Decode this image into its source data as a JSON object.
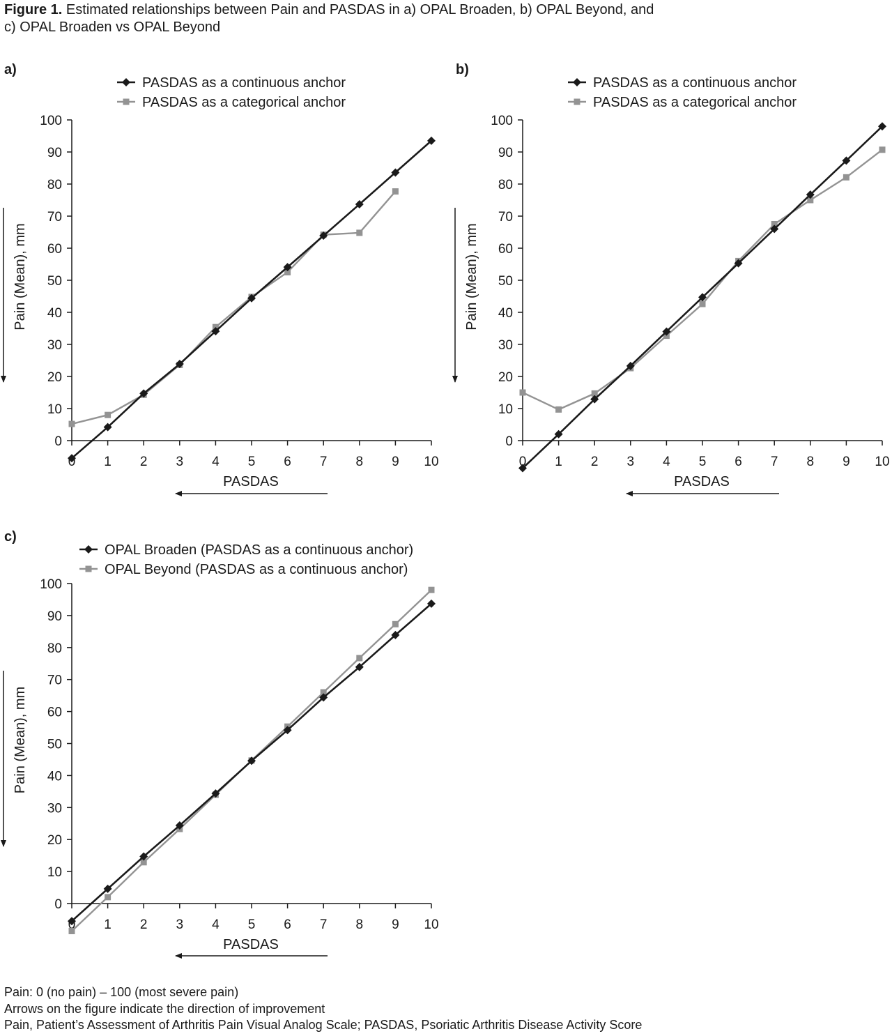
{
  "caption": {
    "label": "Figure 1.",
    "text_line1": "Estimated relationships between Pain and PASDAS in a) OPAL Broaden, b) OPAL Beyond, and",
    "text_line2": "c) OPAL Broaden vs OPAL Beyond"
  },
  "colors": {
    "series_dark": "#1a1a1a",
    "series_gray": "#939393",
    "axis": "#1a1a1a"
  },
  "chart_data": [
    {
      "panel": "a)",
      "type": "line",
      "xlabel": "PASDAS",
      "ylabel": "Pain (Mean), mm",
      "xlim": [
        0,
        10
      ],
      "ylim": [
        0,
        100
      ],
      "xticks": [
        0,
        1,
        2,
        3,
        4,
        5,
        6,
        7,
        8,
        9,
        10
      ],
      "yticks": [
        0,
        10,
        20,
        30,
        40,
        50,
        60,
        70,
        80,
        90,
        100
      ],
      "legend_position": "top",
      "series": [
        {
          "name": "PASDAS as a continuous anchor",
          "marker": "diamond",
          "color_key": "series_dark",
          "x": [
            0,
            1,
            2,
            3,
            4,
            5,
            6,
            7,
            8,
            9,
            10
          ],
          "y": [
            -5.5,
            4.2,
            14.7,
            23.9,
            34.1,
            44.4,
            54.1,
            63.9,
            73.7,
            83.6,
            93.5
          ]
        },
        {
          "name": "PASDAS as a categorical anchor",
          "marker": "square",
          "color_key": "series_gray",
          "x": [
            0,
            1,
            2,
            3,
            4,
            5,
            6,
            7,
            8,
            9
          ],
          "y": [
            5.2,
            8.0,
            14.3,
            23.6,
            35.4,
            44.8,
            52.5,
            64.2,
            64.8,
            77.7
          ]
        }
      ]
    },
    {
      "panel": "b)",
      "type": "line",
      "xlabel": "PASDAS",
      "ylabel": "Pain (Mean), mm",
      "xlim": [
        0,
        10
      ],
      "ylim": [
        0,
        100
      ],
      "xticks": [
        0,
        1,
        2,
        3,
        4,
        5,
        6,
        7,
        8,
        9,
        10
      ],
      "yticks": [
        0,
        10,
        20,
        30,
        40,
        50,
        60,
        70,
        80,
        90,
        100
      ],
      "legend_position": "top",
      "series": [
        {
          "name": "PASDAS as a continuous anchor",
          "marker": "diamond",
          "color_key": "series_dark",
          "x": [
            0,
            1,
            2,
            3,
            4,
            5,
            6,
            7,
            8,
            9,
            10
          ],
          "y": [
            -8.6,
            2.0,
            12.9,
            23.3,
            34.0,
            44.7,
            55.3,
            66.0,
            76.7,
            87.3,
            98.0
          ]
        },
        {
          "name": "PASDAS as a categorical anchor",
          "marker": "square",
          "color_key": "series_gray",
          "x": [
            0,
            1,
            2,
            3,
            4,
            5,
            6,
            7,
            8,
            9,
            10
          ],
          "y": [
            15.0,
            9.7,
            14.7,
            22.6,
            32.7,
            42.6,
            56.0,
            67.5,
            75.0,
            82.1,
            90.7
          ]
        }
      ]
    },
    {
      "panel": "c)",
      "type": "line",
      "xlabel": "PASDAS",
      "ylabel": "Pain (Mean), mm",
      "xlim": [
        0,
        10
      ],
      "ylim": [
        0,
        100
      ],
      "xticks": [
        0,
        1,
        2,
        3,
        4,
        5,
        6,
        7,
        8,
        9,
        10
      ],
      "yticks": [
        0,
        10,
        20,
        30,
        40,
        50,
        60,
        70,
        80,
        90,
        100
      ],
      "legend_position": "top",
      "series": [
        {
          "name": "OPAL Broaden (PASDAS as a continuous anchor)",
          "marker": "diamond",
          "color_key": "series_dark",
          "x": [
            0,
            1,
            2,
            3,
            4,
            5,
            6,
            7,
            8,
            9,
            10
          ],
          "y": [
            -5.5,
            4.6,
            14.7,
            24.4,
            34.4,
            44.6,
            54.2,
            64.4,
            73.9,
            83.9,
            93.7
          ]
        },
        {
          "name": "OPAL Beyond (PASDAS as a continuous anchor)",
          "marker": "square",
          "color_key": "series_gray",
          "x": [
            0,
            1,
            2,
            3,
            4,
            5,
            6,
            7,
            8,
            9,
            10
          ],
          "y": [
            -8.6,
            2.0,
            12.9,
            23.3,
            34.0,
            44.7,
            55.3,
            66.0,
            76.7,
            87.3,
            98.0
          ]
        }
      ]
    }
  ],
  "footnotes": [
    "Pain: 0 (no pain) – 100 (most severe pain)",
    "Arrows on the figure indicate the direction of improvement",
    "Pain, Patient’s Assessment of Arthritis Pain Visual Analog Scale; PASDAS, Psoriatic Arthritis Disease Activity Score"
  ]
}
